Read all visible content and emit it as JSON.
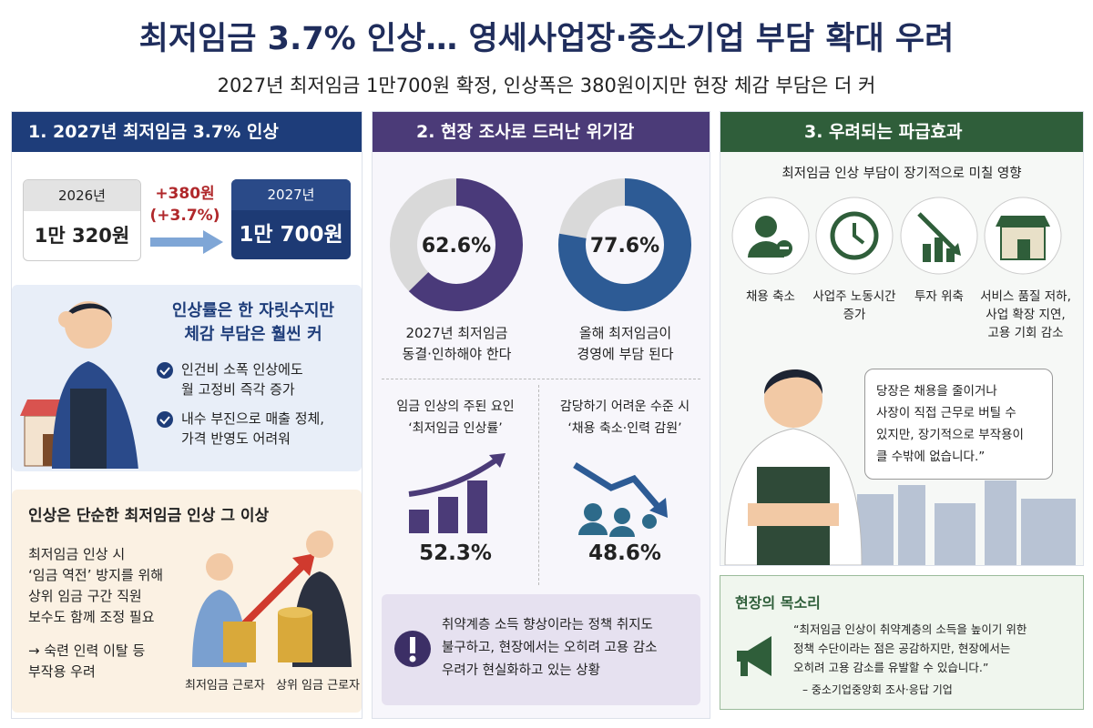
{
  "header": {
    "title": "최저임금 3.7% 인상… 영세사업장·중소기업 부담 확대 우려",
    "subtitle": "2027년 최저임금 1만700원 확정, 인상폭은 380원이지만 현장 체감 부담은 더 커"
  },
  "panel1": {
    "title": "1. 2027년 최저임금 3.7% 인상",
    "before": {
      "year": "2026년",
      "wage": "1만 320원"
    },
    "change": [
      "+380원",
      "(+3.7%)"
    ],
    "after": {
      "year": "2027년",
      "wage": "1만 700원"
    },
    "burden": {
      "heading": [
        "인상률은 한 자릿수지만",
        "체감 부담은 훨씬 커"
      ],
      "bullets": [
        [
          "인건비 소폭 인상에도",
          "월 고정비 즉각 증가"
        ],
        [
          "내수 부진으로 매출 정체,",
          "가격 반영도 어려워"
        ]
      ]
    },
    "beyond": {
      "title": "인상은 단순한 최저임금 인상 그 이상",
      "text": [
        "최저임금 인상 시",
        "‘임금 역전’ 방지를 위해",
        "상위 임금 구간 직원",
        "보수도 함께 조정 필요"
      ],
      "note": [
        "→ 숙련 인력 이탈 등",
        "부작용 우려"
      ],
      "labels": [
        "최저임금 근로자",
        "상위 임금 근로자"
      ]
    }
  },
  "panel2": {
    "title": "2. 현장 조사로 드러난 위기감",
    "donuts": [
      {
        "value": 62.6,
        "value_label": "62.6%",
        "caption": [
          "2027년 최저임금",
          "동결·인하해야 한다"
        ],
        "color": "#4a3a7a"
      },
      {
        "value": 77.6,
        "value_label": "77.6%",
        "caption": [
          "올해 최저임금이",
          "경영에 부담 된다"
        ],
        "color": "#2d5b95"
      }
    ],
    "stats": [
      {
        "caption": [
          "임금 인상의 주된 요인",
          "‘최저임금 인상률’"
        ],
        "value_label": "52.3%"
      },
      {
        "caption": [
          "감당하기 어려운 수준 시",
          "‘채용 축소·인력 감원’"
        ],
        "value_label": "48.6%"
      }
    ],
    "alert": [
      "취약계층 소득 향상이라는 정책 취지도",
      "불구하고, 현장에서는 오히려 고용 감소",
      "우려가 현실화하고 있는 상황"
    ]
  },
  "panel3": {
    "title": "3. 우려되는 파급효과",
    "subtitle": "최저임금 인상 부담이 장기적으로 미칠 영향",
    "effects": [
      [
        "채용 축소"
      ],
      [
        "사업주 노동시간",
        "증가"
      ],
      [
        "투자 위축"
      ],
      [
        "서비스 품질 저하,",
        "사업 확장 지연,",
        "고용 기회 감소"
      ]
    ],
    "quote": [
      "당장은 채용을 줄이거나",
      "사장이 직접 근무로 버틸 수",
      "있지만, 장기적으로 부작용이",
      "클 수밖에 없습니다.”"
    ]
  },
  "voice": {
    "title": "현장의 목소리",
    "quote": [
      "“최저임금 인상이 취약계층의 소득을 높이기 위한",
      "정책 수단이라는 점은 공감하지만, 현장에서는",
      "오히려 고용 감소를 유발할 수 있습니다.”"
    ],
    "source": "– 중소기업중앙회 조사·응답 기업"
  }
}
